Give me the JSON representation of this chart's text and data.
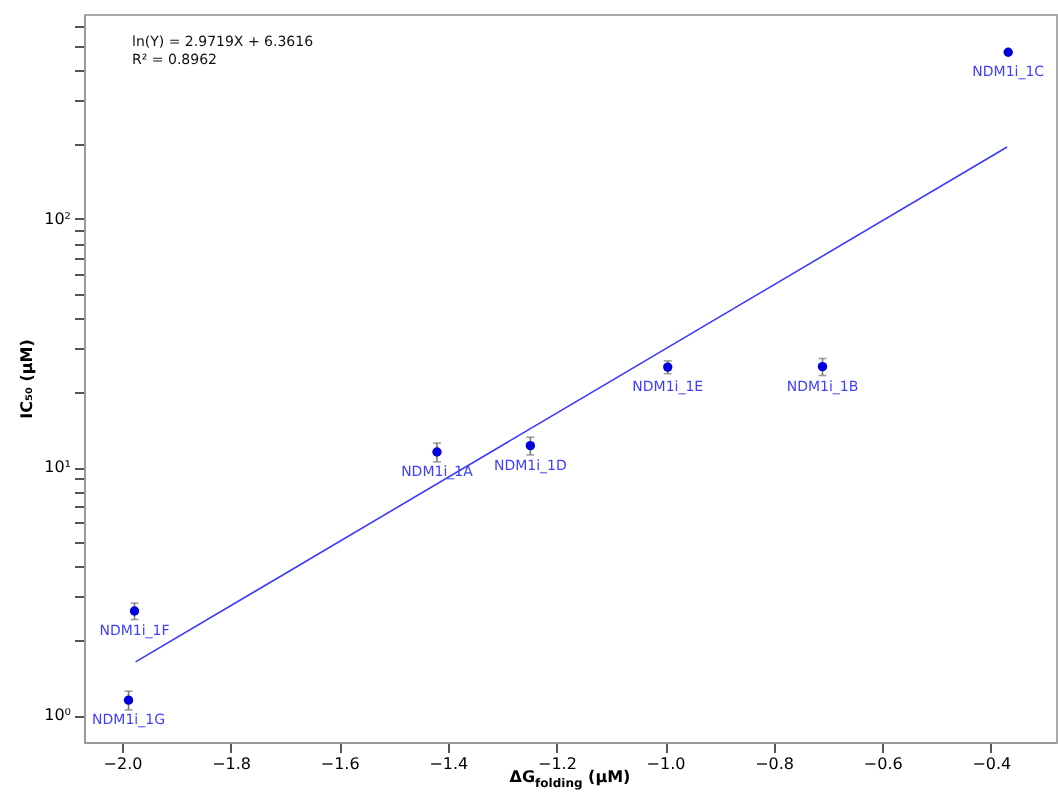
{
  "chart_data": {
    "type": "scatter",
    "xlabel": "ΔG$_{folding}$ (μM)",
    "ylabel": "IC₅₀ (μM)",
    "log": "y",
    "xlim": [
      -2.07,
      -0.28
    ],
    "xticks": [
      {
        "value": -2,
        "label": "−2.0"
      },
      -1.8,
      -1.6,
      -1.4,
      -1.2,
      {
        "value": -1,
        "label": "−1.0"
      },
      -0.8,
      -0.6,
      -0.4
    ],
    "ylim": [
      0.78,
      670
    ],
    "yticks": [
      {
        "value": 1,
        "label": "10⁰"
      },
      {
        "value": 2,
        "label": null
      },
      {
        "value": 3,
        "label": null
      },
      {
        "value": 4,
        "label": null
      },
      {
        "value": 5,
        "label": null
      },
      {
        "value": 6,
        "label": null
      },
      {
        "value": 7,
        "label": null
      },
      {
        "value": 8,
        "label": null
      },
      {
        "value": 9,
        "label": null
      },
      {
        "value": 10,
        "label": "10¹"
      },
      {
        "value": 20,
        "label": null
      },
      {
        "value": 30,
        "label": null
      },
      {
        "value": 40,
        "label": null
      },
      {
        "value": 50,
        "label": null
      },
      {
        "value": 60,
        "label": null
      },
      {
        "value": 70,
        "label": null
      },
      {
        "value": 80,
        "label": null
      },
      {
        "value": 90,
        "label": null
      },
      {
        "value": 100,
        "label": "10²"
      },
      {
        "value": 200,
        "label": null
      },
      {
        "value": 300,
        "label": null
      },
      {
        "value": 400,
        "label": null
      },
      {
        "value": 500,
        "label": null
      },
      {
        "value": 600,
        "label": null
      }
    ],
    "annotations": [
      "ln(Y) = 2.9719X + 6.3616",
      "R² = 0.8962",
      {
        "text": "NDM1i_1G",
        "x": -1.988,
        "y": 1.15
      },
      {
        "text": "NDM1i_1F",
        "x": -1.977,
        "y": 2.63
      },
      {
        "text": "NDM1i_1A",
        "x": -1.42,
        "y": 11.5
      },
      {
        "text": "NDM1i_1D",
        "x": -1.248,
        "y": 12.2
      },
      {
        "text": "NDM1i_1E",
        "x": -0.995,
        "y": 25.3
      },
      {
        "text": "NDM1i_1B",
        "x": -0.71,
        "y": 25.4
      },
      {
        "text": "NDM1i_1C",
        "x": -0.368,
        "y": 470
      }
    ],
    "series": [
      {
        "marker": "circle",
        "color": "#0000dd",
        "x": [
          -1.988,
          -1.977,
          -1.42,
          -1.248,
          -0.995,
          -0.71,
          -0.368
        ],
        "values": [
          1.15,
          2.63,
          11.5,
          12.2,
          25.3,
          25.4,
          470
        ],
        "errors": [
          0.1,
          0.2,
          1,
          1,
          1.5,
          2,
          null
        ]
      },
      {
        "type": "line",
        "color": "#3b3bff",
        "x": [
          -1.975,
          -0.37
        ],
        "values": [
          1.64,
          195
        ]
      }
    ]
  }
}
